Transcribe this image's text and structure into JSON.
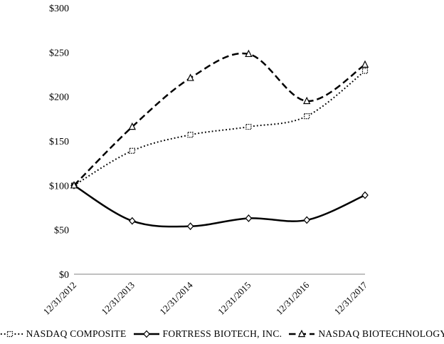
{
  "chart_data": {
    "type": "line",
    "title": "",
    "xlabel": "",
    "ylabel": "",
    "categories": [
      "12/31/2012",
      "12/31/2013",
      "12/31/2014",
      "12/31/2015",
      "12/31/2016",
      "12/31/2017"
    ],
    "series": [
      {
        "name": "NASDAQ COMPOSITE",
        "values": [
          100,
          139,
          157,
          166,
          178,
          229
        ],
        "line_style": "dotted",
        "marker": "square"
      },
      {
        "name": "FORTRESS BIOTECH, INC.",
        "values": [
          100,
          60,
          54,
          63,
          61,
          89
        ],
        "line_style": "solid",
        "marker": "diamond"
      },
      {
        "name": "NASDAQ BIOTECHNOLOGY",
        "values": [
          100,
          166,
          221,
          248,
          195,
          236
        ],
        "line_style": "dashed",
        "marker": "triangle"
      }
    ],
    "y_tick_labels": [
      "$300",
      "$250",
      "$200",
      "$150",
      "$100",
      "$50",
      "$0"
    ],
    "y_tick_values": [
      300,
      250,
      200,
      150,
      100,
      50,
      0
    ],
    "ylim": [
      0,
      300
    ],
    "grid": false,
    "legend_position": "bottom",
    "colors": {
      "series": "#000000",
      "axis_line": "#808080",
      "background": "#ffffff",
      "text": "#000000"
    }
  }
}
